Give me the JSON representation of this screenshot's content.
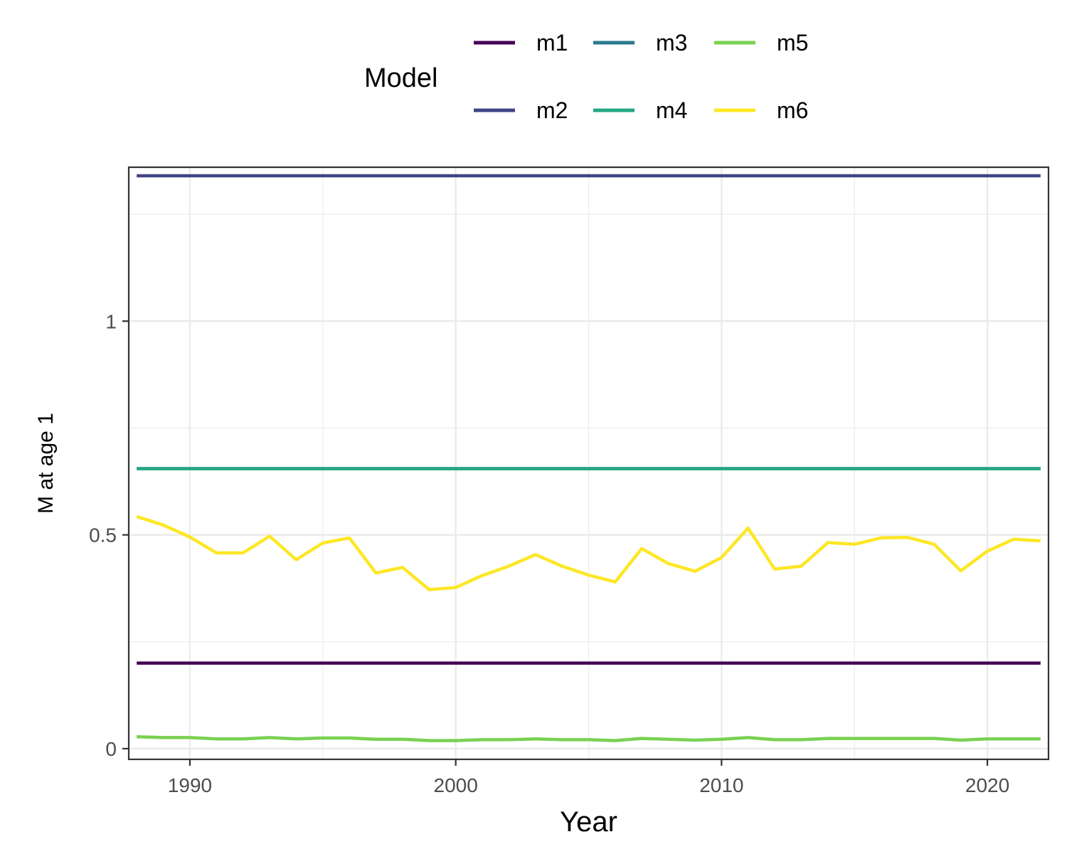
{
  "chart_data": {
    "type": "line",
    "xlabel": "Year",
    "ylabel": "M at age 1",
    "xlim": [
      1987.7,
      2022.3
    ],
    "ylim": [
      -0.025,
      1.36
    ],
    "x_ticks": [
      1990,
      2000,
      2010,
      2020
    ],
    "x_tick_labels": [
      "1990",
      "2000",
      "2010",
      "2020"
    ],
    "y_ticks": [
      0,
      0.5,
      1
    ],
    "y_tick_labels": [
      "0",
      "0.5",
      "1"
    ],
    "y_minor_ticks": [
      0.25,
      0.75,
      1.25
    ],
    "grid": true,
    "legend": {
      "title": "Model",
      "position": "top",
      "entries": [
        "m1",
        "m2",
        "m3",
        "m4",
        "m5",
        "m6"
      ]
    },
    "x": [
      1988,
      1989,
      1990,
      1991,
      1992,
      1993,
      1994,
      1995,
      1996,
      1997,
      1998,
      1999,
      2000,
      2001,
      2002,
      2003,
      2004,
      2005,
      2006,
      2007,
      2008,
      2009,
      2010,
      2011,
      2012,
      2013,
      2014,
      2015,
      2016,
      2017,
      2018,
      2019,
      2020,
      2021,
      2022
    ],
    "series": [
      {
        "name": "m1",
        "color": "#440154",
        "values": [
          0.2,
          0.2,
          0.2,
          0.2,
          0.2,
          0.2,
          0.2,
          0.2,
          0.2,
          0.2,
          0.2,
          0.2,
          0.2,
          0.2,
          0.2,
          0.2,
          0.2,
          0.2,
          0.2,
          0.2,
          0.2,
          0.2,
          0.2,
          0.2,
          0.2,
          0.2,
          0.2,
          0.2,
          0.2,
          0.2,
          0.2,
          0.2,
          0.2,
          0.2,
          0.2
        ]
      },
      {
        "name": "m2",
        "color": "#414487",
        "values": [
          1.34,
          1.34,
          1.34,
          1.34,
          1.34,
          1.34,
          1.34,
          1.34,
          1.34,
          1.34,
          1.34,
          1.34,
          1.34,
          1.34,
          1.34,
          1.34,
          1.34,
          1.34,
          1.34,
          1.34,
          1.34,
          1.34,
          1.34,
          1.34,
          1.34,
          1.34,
          1.34,
          1.34,
          1.34,
          1.34,
          1.34,
          1.34,
          1.34,
          1.34,
          1.34
        ]
      },
      {
        "name": "m3",
        "color": "#2A788E",
        "values": [
          0.655,
          0.655,
          0.655,
          0.655,
          0.655,
          0.655,
          0.655,
          0.655,
          0.655,
          0.655,
          0.655,
          0.655,
          0.655,
          0.655,
          0.655,
          0.655,
          0.655,
          0.655,
          0.655,
          0.655,
          0.655,
          0.655,
          0.655,
          0.655,
          0.655,
          0.655,
          0.655,
          0.655,
          0.655,
          0.655,
          0.655,
          0.655,
          0.655,
          0.655,
          0.655
        ]
      },
      {
        "name": "m4",
        "color": "#22A884",
        "values": [
          0.655,
          0.655,
          0.655,
          0.655,
          0.655,
          0.655,
          0.655,
          0.655,
          0.655,
          0.655,
          0.655,
          0.655,
          0.655,
          0.655,
          0.655,
          0.655,
          0.655,
          0.655,
          0.655,
          0.655,
          0.655,
          0.655,
          0.655,
          0.655,
          0.655,
          0.655,
          0.655,
          0.655,
          0.655,
          0.655,
          0.655,
          0.655,
          0.655,
          0.655,
          0.655
        ]
      },
      {
        "name": "m5",
        "color": "#7AD151",
        "values": [
          0.028,
          0.026,
          0.026,
          0.023,
          0.023,
          0.026,
          0.023,
          0.025,
          0.025,
          0.022,
          0.022,
          0.019,
          0.019,
          0.021,
          0.021,
          0.023,
          0.021,
          0.021,
          0.019,
          0.024,
          0.022,
          0.02,
          0.022,
          0.026,
          0.021,
          0.021,
          0.024,
          0.024,
          0.024,
          0.024,
          0.024,
          0.02,
          0.023,
          0.023,
          0.023
        ]
      },
      {
        "name": "m6",
        "color": "#FDE725",
        "values": [
          0.543,
          0.523,
          0.495,
          0.458,
          0.458,
          0.497,
          0.442,
          0.481,
          0.493,
          0.411,
          0.424,
          0.372,
          0.377,
          0.405,
          0.427,
          0.454,
          0.427,
          0.406,
          0.39,
          0.468,
          0.433,
          0.415,
          0.447,
          0.516,
          0.42,
          0.427,
          0.482,
          0.478,
          0.493,
          0.494,
          0.478,
          0.416,
          0.462,
          0.49,
          0.486
        ]
      }
    ]
  }
}
